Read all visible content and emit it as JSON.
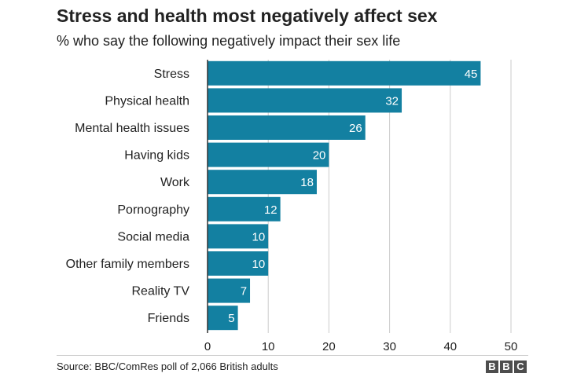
{
  "chart_data": {
    "type": "bar",
    "orientation": "horizontal",
    "title": "Stress and health most negatively affect sex",
    "subtitle": "% who say the following negatively impact their sex life",
    "categories": [
      "Stress",
      "Physical health",
      "Mental health issues",
      "Having kids",
      "Work",
      "Pornography",
      "Social media",
      "Other family members",
      "Reality TV",
      "Friends"
    ],
    "values": [
      45,
      32,
      26,
      20,
      18,
      12,
      10,
      10,
      7,
      5
    ],
    "xlim": [
      0,
      50
    ],
    "xticks": [
      0,
      10,
      20,
      30,
      40,
      50
    ],
    "grid": true,
    "data_labels": true,
    "bar_color": "#1380a1",
    "label_color": "#ffffff",
    "grid_color": "#cbcbcb"
  },
  "footer": {
    "source": "Source: BBC/ComRes poll of 2,066 British adults",
    "logo_letters": [
      "B",
      "B",
      "C"
    ]
  }
}
